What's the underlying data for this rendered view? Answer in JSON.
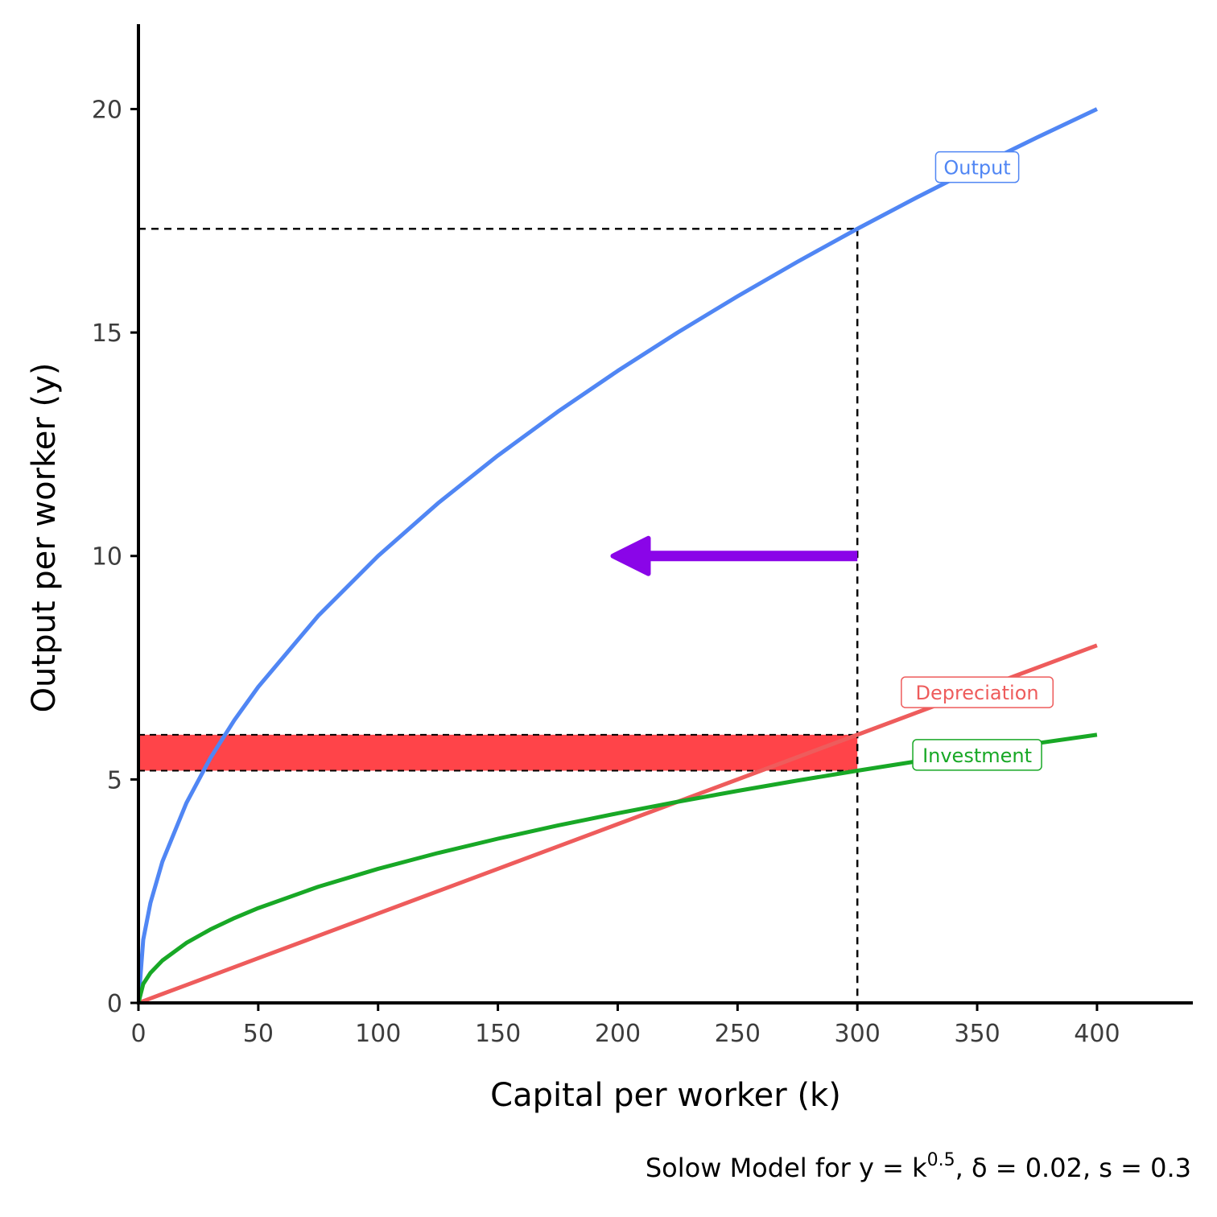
{
  "chart_data": {
    "type": "line",
    "xlabel": "Capital per worker (k)",
    "ylabel": "Output per worker (y)",
    "caption": {
      "prefix": "Solow Model for y = k",
      "exponent": "0.5",
      "suffix": ", δ = 0.02, s = 0.3"
    },
    "xlim": [
      0,
      440
    ],
    "ylim": [
      0,
      21.9
    ],
    "x_ticks": [
      0,
      50,
      100,
      150,
      200,
      250,
      300,
      350,
      400
    ],
    "x_tick_labels": [
      "0",
      "50",
      "100",
      "150",
      "200",
      "250",
      "300",
      "350",
      "400"
    ],
    "y_ticks": [
      0,
      5,
      10,
      15,
      20
    ],
    "y_tick_labels": [
      "0",
      "5",
      "10",
      "15",
      "20"
    ],
    "x": [
      0,
      2,
      5,
      10,
      20,
      30,
      40,
      50,
      75,
      100,
      125,
      150,
      175,
      200,
      225,
      250,
      275,
      300,
      325,
      350,
      375,
      400
    ],
    "series": [
      {
        "name": "Output",
        "color": "#5086f4",
        "values": [
          0,
          1.414,
          2.236,
          3.162,
          4.472,
          5.477,
          6.325,
          7.071,
          8.66,
          10.0,
          11.18,
          12.247,
          13.229,
          14.142,
          15.0,
          15.811,
          16.583,
          17.321,
          18.028,
          18.708,
          19.365,
          20.0
        ]
      },
      {
        "name": "Depreciation",
        "color": "#ee5c5c",
        "values": [
          0,
          0.04,
          0.1,
          0.2,
          0.4,
          0.6,
          0.8,
          1.0,
          1.5,
          2.0,
          2.5,
          3.0,
          3.5,
          4.0,
          4.5,
          5.0,
          5.5,
          6.0,
          6.5,
          7.0,
          7.5,
          8.0
        ]
      },
      {
        "name": "Investment",
        "color": "#18a826",
        "values": [
          0,
          0.424,
          0.671,
          0.949,
          1.342,
          1.643,
          1.897,
          2.121,
          2.598,
          3.0,
          3.354,
          3.674,
          3.969,
          4.243,
          4.5,
          4.743,
          4.975,
          5.196,
          5.408,
          5.612,
          5.809,
          6.0
        ]
      }
    ],
    "series_label_positions": [
      {
        "name": "Output",
        "x": 350,
        "y": 18.7
      },
      {
        "name": "Depreciation",
        "x": 350,
        "y": 6.95
      },
      {
        "name": "Investment",
        "x": 350,
        "y": 5.55
      }
    ],
    "annotations": {
      "reference_k": 300,
      "reference_y": 17.32,
      "gap_band": {
        "x0": 0,
        "x1": 300,
        "y_low": 5.196,
        "y_high": 6.0,
        "color": "#ff2a30"
      },
      "arrow": {
        "x_from": 300,
        "x_to": 198,
        "y": 10,
        "color": "#8a05e8"
      }
    },
    "grid": false,
    "legend": "none"
  }
}
